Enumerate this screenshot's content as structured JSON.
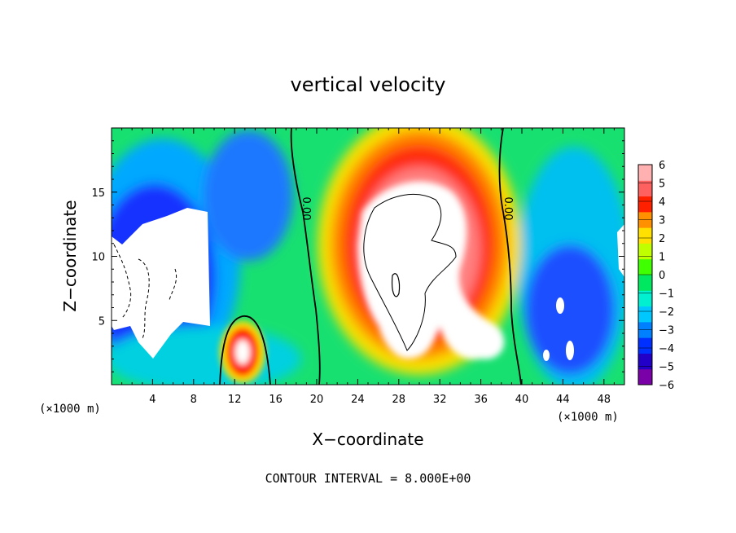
{
  "chart_data": {
    "type": "heatmap",
    "title": "vertical velocity",
    "xlabel": "X−coordinate",
    "ylabel": "Z−coordinate",
    "x_unit_left": "(×1000 m)",
    "x_unit_right": "(×1000 m)",
    "footer": "CONTOUR INTERVAL = 8.000E+00",
    "xlim": [
      0,
      50
    ],
    "ylim": [
      0,
      20
    ],
    "x_ticks": [
      4,
      8,
      12,
      16,
      20,
      24,
      28,
      32,
      36,
      40,
      44,
      48
    ],
    "x_tick_labels": [
      "4",
      "8",
      "12",
      "16",
      "20",
      "24",
      "28",
      "32",
      "36",
      "40",
      "44",
      "48"
    ],
    "y_ticks": [
      5,
      10,
      15
    ],
    "y_tick_labels": [
      "5",
      "10",
      "15"
    ],
    "colorbar": {
      "min": -6,
      "max": 6,
      "tick_labels": [
        "6",
        "5",
        "4",
        "3",
        "2",
        "1",
        "0",
        "−1",
        "−2",
        "−3",
        "−4",
        "−5",
        "−6"
      ],
      "colors": [
        "#7a00a8",
        "#2200c8",
        "#0030ff",
        "#0080ff",
        "#00c8ff",
        "#00f0d0",
        "#00e860",
        "#40ff00",
        "#c0ff00",
        "#ffe000",
        "#ff9000",
        "#ff2000",
        "#ff6060",
        "#ffb0b0"
      ]
    },
    "contour_labels": [
      "0.00",
      "0.00"
    ],
    "grid": false
  }
}
